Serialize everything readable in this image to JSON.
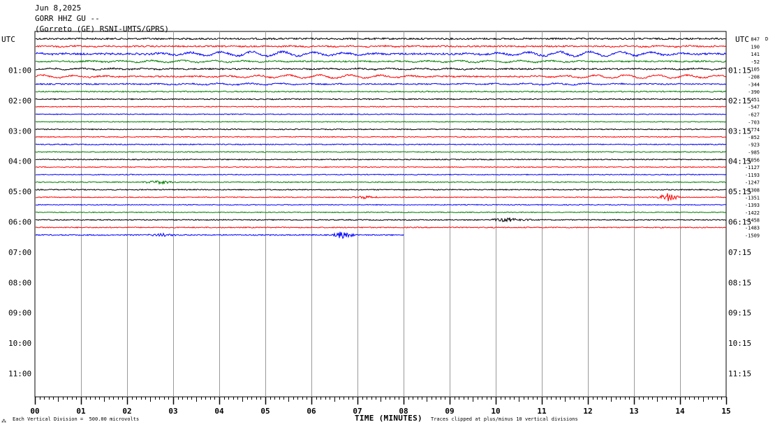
{
  "header": {
    "date": "Jun 8,2025",
    "station": "GORR HHZ GU --",
    "location": "(Gorreto (GE) RSNI-UMTS/GPRS)"
  },
  "left_axis_title": "UTC",
  "right_axis_title": "UTC",
  "footer": {
    "left_mark": "⁂",
    "division_note": "Each Vertical Division =  500.00 microvolts",
    "xlabel": "TIME (MINUTES)",
    "clip_note": "Traces clipped at plus/minus 10 vertical divisions"
  },
  "colors": {
    "black": "#000000",
    "red": "#ff0000",
    "blue": "#0000ff",
    "green": "#007f00",
    "grid": "#999999"
  },
  "chart_data": {
    "type": "line",
    "xlabel": "TIME (MINUTES)",
    "xlim": [
      0,
      15
    ],
    "x_ticks": [
      "00",
      "01",
      "02",
      "03",
      "04",
      "05",
      "06",
      "07",
      "08",
      "09",
      "10",
      "11",
      "12",
      "13",
      "14",
      "15"
    ],
    "left_hour_labels": [
      "01:00",
      "02:00",
      "03:00",
      "04:00",
      "05:00",
      "06:00",
      "07:00",
      "08:00",
      "09:00",
      "10:00",
      "11:00"
    ],
    "right_hour_labels": [
      "01:15",
      "02:15",
      "03:15",
      "04:15",
      "05:15",
      "06:15",
      "07:15",
      "08:15",
      "09:15",
      "10:15",
      "11:15"
    ],
    "offset_top_label": "D",
    "trace_offsets": [
      "847",
      "190",
      "141",
      "-52",
      "-105",
      "-208",
      "-344",
      "-390",
      "-451",
      "-547",
      "-627",
      "-703",
      "-774",
      "-852",
      "-923",
      "-985",
      "-1056",
      "-1127",
      "-1193",
      "-1247",
      "-1308",
      "-1351",
      "-1393",
      "-1422",
      "-1458",
      "-1483",
      "-1509"
    ],
    "traces": [
      {
        "color": "black",
        "end_min": 15,
        "amp": 1.2,
        "wave": 0
      },
      {
        "color": "red",
        "end_min": 15,
        "amp": 1.0,
        "wave": 0.6
      },
      {
        "color": "blue",
        "end_min": 15,
        "amp": 1.3,
        "wave": 3.2
      },
      {
        "color": "green",
        "end_min": 15,
        "amp": 1.0,
        "wave": 1.4
      },
      {
        "color": "black",
        "end_min": 15,
        "amp": 1.0,
        "wave": 0.8
      },
      {
        "color": "red",
        "end_min": 15,
        "amp": 1.0,
        "wave": 2.4
      },
      {
        "color": "blue",
        "end_min": 15,
        "amp": 0.9,
        "wave": 1.0
      },
      {
        "color": "green",
        "end_min": 15,
        "amp": 0.8,
        "wave": 0
      },
      {
        "color": "black",
        "end_min": 15,
        "amp": 0.8,
        "wave": 0
      },
      {
        "color": "red",
        "end_min": 15,
        "amp": 0.6,
        "wave": 0
      },
      {
        "color": "blue",
        "end_min": 15,
        "amp": 0.6,
        "wave": 0
      },
      {
        "color": "green",
        "end_min": 15,
        "amp": 0.6,
        "wave": 0
      },
      {
        "color": "black",
        "end_min": 15,
        "amp": 0.7,
        "wave": 0
      },
      {
        "color": "red",
        "end_min": 15,
        "amp": 0.6,
        "wave": 0
      },
      {
        "color": "blue",
        "end_min": 15,
        "amp": 0.7,
        "wave": 0
      },
      {
        "color": "green",
        "end_min": 15,
        "amp": 0.7,
        "wave": 0
      },
      {
        "color": "black",
        "end_min": 15,
        "amp": 0.7,
        "wave": 0
      },
      {
        "color": "red",
        "end_min": 15,
        "amp": 0.6,
        "wave": 0
      },
      {
        "color": "blue",
        "end_min": 15,
        "amp": 0.6,
        "wave": 0
      },
      {
        "color": "green",
        "end_min": 15,
        "amp": 0.7,
        "wave": 0,
        "events": [
          {
            "t": 2.7,
            "amp": 2.5,
            "dur": 0.5
          }
        ]
      },
      {
        "color": "black",
        "end_min": 15,
        "amp": 0.7,
        "wave": 0
      },
      {
        "color": "red",
        "end_min": 15,
        "amp": 0.6,
        "wave": 0,
        "events": [
          {
            "t": 7.2,
            "amp": 2.5,
            "dur": 0.4
          },
          {
            "t": 13.75,
            "amp": 6,
            "dur": 0.3
          }
        ]
      },
      {
        "color": "blue",
        "end_min": 15,
        "amp": 0.6,
        "wave": 0
      },
      {
        "color": "green",
        "end_min": 15,
        "amp": 0.6,
        "wave": 0
      },
      {
        "color": "black",
        "end_min": 15,
        "amp": 0.7,
        "wave": 0,
        "events": [
          {
            "t": 10.3,
            "amp": 3,
            "dur": 0.6
          }
        ]
      },
      {
        "color": "red",
        "end_min": 15,
        "amp": 0.7,
        "wave": 0
      },
      {
        "color": "blue",
        "end_min": 8,
        "amp": 0.8,
        "wave": 0,
        "events": [
          {
            "t": 2.8,
            "amp": 2.5,
            "dur": 0.4
          },
          {
            "t": 6.7,
            "amp": 6,
            "dur": 0.3
          }
        ]
      }
    ]
  }
}
